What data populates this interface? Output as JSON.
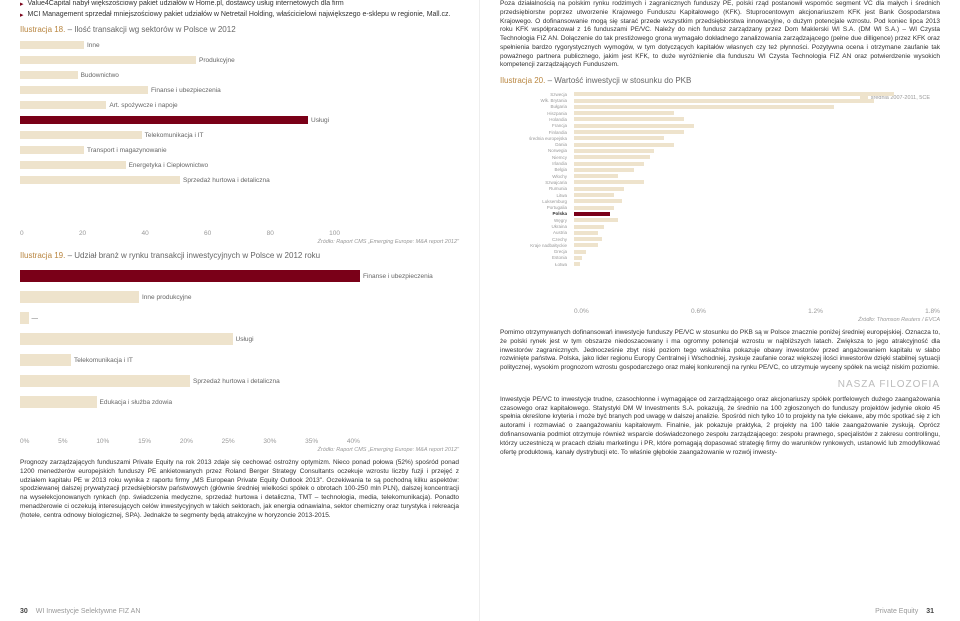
{
  "left": {
    "bullets": [
      "Value4Capital nabył większościowy pakiet udziałów w Home.pl, dostawcy usług internetowych dla firm",
      "MCI Management sprzedał mniejszościowy pakiet udziałów w Netretail Holding, właścicielowi największego e-sklepu w regionie, Mall.cz."
    ],
    "chart1": {
      "title_prefix": "Ilustracja 18.",
      "title": " – Ilość transakcji wg sektorów w Polsce w 2012",
      "type": "bar",
      "xmax": 100,
      "ticks": [
        "0",
        "20",
        "40",
        "60",
        "80",
        "100"
      ],
      "bars": [
        {
          "label": "Inne",
          "value": 20,
          "maroon": false
        },
        {
          "label": "Produkcyjne",
          "value": 55,
          "maroon": false
        },
        {
          "label": "Budownictwo",
          "value": 18,
          "maroon": false
        },
        {
          "label": "Finanse i ubezpieczenia",
          "value": 40,
          "maroon": false
        },
        {
          "label": "Art. spożywcze i napoje",
          "value": 27,
          "maroon": false
        },
        {
          "label": "Usługi",
          "value": 90,
          "maroon": true
        },
        {
          "label": "Telekomunikacja i IT",
          "value": 38,
          "maroon": false
        },
        {
          "label": "Transport i magazynowanie",
          "value": 20,
          "maroon": false
        },
        {
          "label": "Energetyka i Ciepłownictwo",
          "value": 33,
          "maroon": false
        },
        {
          "label": "Sprzedaż hurtowa i detaliczna",
          "value": 50,
          "maroon": false
        }
      ],
      "source": "Źródło: Raport CMS „Emerging Europe: M&A report 2012\""
    },
    "chart2": {
      "title_prefix": "Ilustracja 19.",
      "title": " – Udział branż w rynku transakcji inwestycyjnych w Polsce w 2012 roku",
      "type": "bar",
      "xmax": 40,
      "ticks": [
        "0%",
        "5%",
        "10%",
        "15%",
        "20%",
        "25%",
        "30%",
        "35%",
        "40%"
      ],
      "bars": [
        {
          "label": "Finanse i ubezpieczenia",
          "value": 40,
          "maroon": true
        },
        {
          "label": "Inne produkcyjne",
          "value": 14,
          "maroon": false
        },
        {
          "label": "—",
          "value": 1,
          "maroon": false
        },
        {
          "label": "Usługi",
          "value": 25,
          "maroon": false
        },
        {
          "label": "Telekomunikacja i IT",
          "value": 6,
          "maroon": false
        },
        {
          "label": "Sprzedaż hurtowa i detaliczna",
          "value": 20,
          "maroon": false
        },
        {
          "label": "Edukacja i służba zdowia",
          "value": 9,
          "maroon": false
        }
      ],
      "source": "Źródło: Raport CMS „Emerging Europe: M&A report 2012\""
    },
    "body": "Prognozy zarządzających funduszami Private Equity na rok 2013 zdaje się cechować ostrożny optymizm. Nieco ponad połowa (52%) spośród ponad 1200 menedżerów europejskich funduszy PE ankietowanych przez Roland Berger Strategy Consultants oczekuje wzrostu liczby fuzji i przejęć z udziałem kapitału PE w 2013 roku wynika z raportu firmy „MS European Private Equity Outlook 2013\". Oczekiwania te są pochodną kilku aspektów: spodziewanej dalszej prywatyzacji przedsiębiorstw państwowych (głównie średniej wielkości spółek o obrotach 100-250 mln PLN), dalszej koncentracji na wyselekcjonowanych rynkach (np. świadczenia medyczne, sprzedaż hurtowa i detaliczna, TMT – technologia, media, telekomunikacja). Ponadto menadżerowie ci oczekują interesujących celów inwestycyjnych w takich sektorach, jak energia odnawialna, sektor chemiczny oraz turystyka i rekreacja (hotele, centra odnowy biologicznej, SPA). Jednakże te segmenty będą atrakcyjne w horyzoncie 2013-2015.",
    "footer_num": "30",
    "footer_text": "WI Inwestycje Selektywne FIZ AN"
  },
  "right": {
    "body1": "Poza działalnością na polskim rynku rodzimych i zagranicznych funduszy PE, polski rząd postanowił wspomóc segment VC dla małych i średnich przedsiębiorstw poprzez utworzenie Krajowego Funduszu Kapitałowego (KFK). Stuprocentowym akcjonariuszem KFK jest Bank Gospodarstwa Krajowego. O dofinansowanie mogą się starać przede wszystkim przedsiębiorstwa innowacyjne, o dużym potencjale wzrostu. Pod koniec lipca 2013 roku KFK współpracował z 16 funduszami PE/VC. Należy do nich fundusz zarządzany przez Dom Maklerski WI S.A. (DM WI S.A.) – WI Czysta Technologia FIZ AN. Dołączenie do tak prestiżowego grona wymagało dokładnego zanalizowania zarządzającego (pełne due dilligence) przez KFK oraz spełnienia bardzo rygorystycznych wymogów, w tym dotyczących kapitałów własnych czy też płynności. Pozytywna ocena i otrzymane zaufanie tak poważnego partnera publicznego, jakim jest KFK, to duże wyróżnienie dla funduszu WI Czysta Technologia FIZ AN oraz potwierdzenie wysokich kompetencji zarządzających Funduszem.",
    "chart3": {
      "title_prefix": "Ilustracja 20.",
      "title": " – Wartość inwestycji w stosunku do PKB",
      "legend": "średnia 2007-2011, 5CE",
      "type": "bar",
      "xmax": 1.8,
      "ticks": [
        "0.0%",
        "0.6%",
        "1.2%",
        "1.8%"
      ],
      "countries": [
        {
          "label": "Szwecja",
          "value": 1.6,
          "bold": false
        },
        {
          "label": "Wlk. Brytania",
          "value": 1.5,
          "bold": false
        },
        {
          "label": "Bułgaria",
          "value": 1.3,
          "bold": false
        },
        {
          "label": "Hiszpania",
          "value": 0.5,
          "bold": false
        },
        {
          "label": "Holandia",
          "value": 0.55,
          "bold": false
        },
        {
          "label": "Francja",
          "value": 0.6,
          "bold": false
        },
        {
          "label": "Finlandia",
          "value": 0.55,
          "bold": false
        },
        {
          "label": "średnia europejska",
          "value": 0.45,
          "bold": false
        },
        {
          "label": "Dania",
          "value": 0.5,
          "bold": false
        },
        {
          "label": "Norwegia",
          "value": 0.4,
          "bold": false
        },
        {
          "label": "Niemcy",
          "value": 0.38,
          "bold": false
        },
        {
          "label": "Irlandia",
          "value": 0.35,
          "bold": false
        },
        {
          "label": "Belgia",
          "value": 0.3,
          "bold": false
        },
        {
          "label": "Włochy",
          "value": 0.22,
          "bold": false
        },
        {
          "label": "Szwajcaria",
          "value": 0.35,
          "bold": false
        },
        {
          "label": "Rumunia",
          "value": 0.25,
          "bold": false
        },
        {
          "label": "Litwa",
          "value": 0.2,
          "bold": false
        },
        {
          "label": "Luksemburg",
          "value": 0.24,
          "bold": false
        },
        {
          "label": "Portugalia",
          "value": 0.2,
          "bold": false
        },
        {
          "label": "Polska",
          "value": 0.18,
          "bold": true
        },
        {
          "label": "Węgry",
          "value": 0.22,
          "bold": false
        },
        {
          "label": "Ukraina",
          "value": 0.15,
          "bold": false
        },
        {
          "label": "Austria",
          "value": 0.12,
          "bold": false
        },
        {
          "label": "Czechy",
          "value": 0.14,
          "bold": false
        },
        {
          "label": "Kraje nadbałtyckie",
          "value": 0.12,
          "bold": false
        },
        {
          "label": "Grecja",
          "value": 0.06,
          "bold": false
        },
        {
          "label": "Estonia",
          "value": 0.04,
          "bold": false
        },
        {
          "label": "Łotwa",
          "value": 0.03,
          "bold": false
        }
      ],
      "source": "Źródło: Thomson Reuters / EVCA"
    },
    "body2": "Pomimo otrzymywanych dofinansowań inwestycje funduszy PE/VC w stosunku do PKB są w Polsce znacznie poniżej średniej europejskiej. Oznacza to, że polski rynek jest w tym obszarze niedoszacowany i ma ogromny potencjał wzrostu w najbliższych latach. Zwiększa to jego atrakcyjność dla inwestorów zagranicznych. Jednocześnie zbyt niski poziom tego wskaźnika pokazuje obawy inwestorów przed angażowaniem kapitału w słabo rozwinięte państwa. Polska, jako lider regionu Europy Centralnej i Wschodniej, zyskuje zaufanie coraz większej ilości inwestorów dzięki stabilnej sytuacji politycznej, wysokim prognozom wzrostu gospodarczego oraz małej konkurencji na rynku PE/VC, co utrzymuje wyceny spółek na wciąż niskim poziomie.",
    "section": "NASZA FILOZOFIA",
    "body3": "Inwestycje PE/VC to inwestycje trudne, czasochłonne i wymagające od zarządzającego oraz akcjonariuszy spółek portfelowych dużego zaangażowania czasowego oraz kapitałowego. Statystyki DM W Investments S.A. pokazują, że średnio na 100 zgłoszonych do funduszy projektów jedynie około 45 spełnia określone kryteria i może być branych pod uwagę w dalszej analizie. Spośród nich tylko 10 to projekty na tyle ciekawe, aby móc spotkać się z ich autorami i rozmawiać o zaangażowaniu kapitałowym. Finalnie, jak pokazuje praktyka, 2 projekty na 100 takie zaangażowanie zyskują. Oprócz dofinansowania podmiot otrzymuje również wsparcie doświadczonego zespołu zarządzającego: zespołu prawnego, specjalistów z zakresu controllingu, którzy uczestniczą w pracach działu marketingu i PR, które pomagają dopasować strategię firmy do warunków rynkowych, ustanowić lub zmodyfikować ofertę produktową, kanały dystrybucji etc. To właśnie głębokie zaangażowanie w rozwój inwesty-",
    "footer_text": "Private Equity",
    "footer_num": "31"
  },
  "colors": {
    "maroon": "#7a0018",
    "tan": "#eee3cc",
    "grey": "#999"
  }
}
